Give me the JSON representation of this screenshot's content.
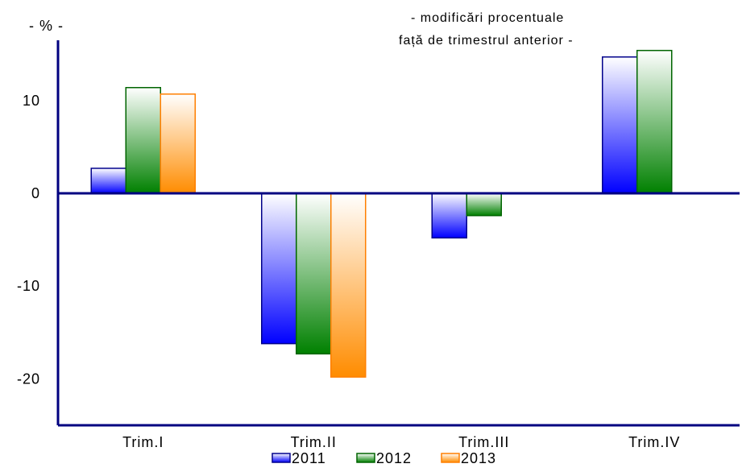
{
  "chart_data": {
    "type": "bar",
    "unit_label": "- % -",
    "note_lines": [
      "- modificări procentuale",
      "față de trimestrul anterior -"
    ],
    "categories": [
      "Trim.I",
      "Trim.II",
      "Trim.III",
      "Trim.IV"
    ],
    "series": [
      {
        "name": "2011",
        "values": [
          2.7,
          -16.2,
          -4.8,
          14.7
        ]
      },
      {
        "name": "2012",
        "values": [
          11.4,
          -17.3,
          -2.4,
          15.4
        ]
      },
      {
        "name": "2013",
        "values": [
          10.7,
          -19.8,
          null,
          null
        ]
      }
    ],
    "y_ticks": [
      10,
      0,
      -10,
      -20
    ],
    "ylim": [
      -25,
      16.5
    ],
    "grid": false,
    "legend_position": "bottom",
    "colors": {
      "2011": {
        "dark": "#0000ff",
        "light": "#ffffff",
        "stroke": "#00008b"
      },
      "2012": {
        "dark": "#008000",
        "light": "#ffffff",
        "stroke": "#006400"
      },
      "2013": {
        "dark": "#ff8c00",
        "light": "#ffffff",
        "stroke": "#ff7f00"
      },
      "axis": "#000080"
    }
  }
}
